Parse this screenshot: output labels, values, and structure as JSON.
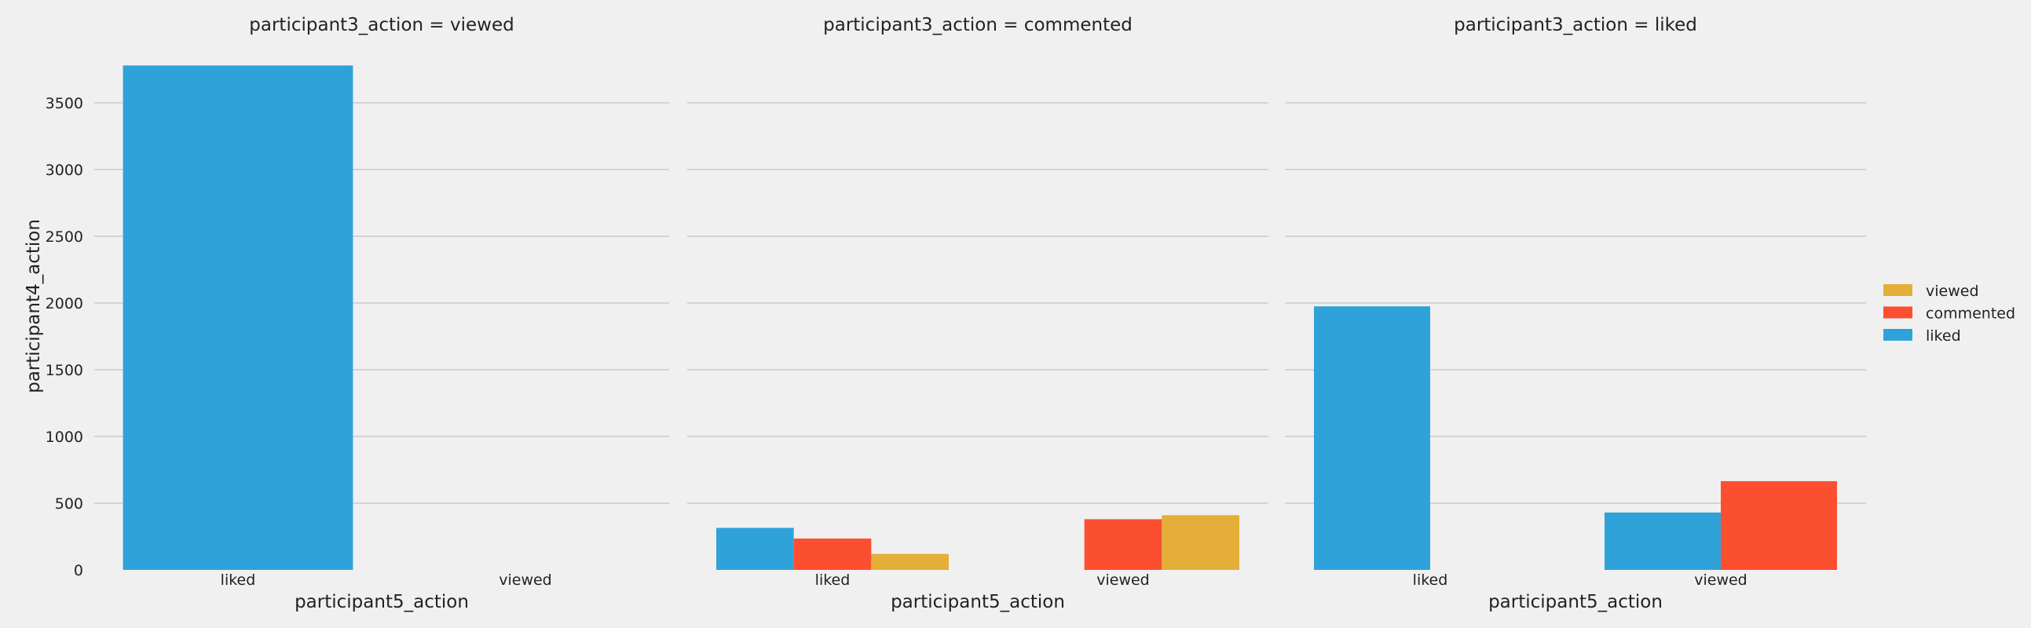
{
  "chart_data": {
    "type": "bar",
    "xlabel": "participant5_action",
    "ylabel": "participant4_action",
    "ylim": [
      0,
      3800
    ],
    "yticks": [
      0,
      500,
      1000,
      1500,
      2000,
      2500,
      3000,
      3500
    ],
    "grid": true,
    "legend_position": "right",
    "legend": [
      {
        "label": "viewed",
        "color": "#e5ae38"
      },
      {
        "label": "commented",
        "color": "#fc4f30"
      },
      {
        "label": "liked",
        "color": "#30a2da"
      }
    ],
    "series_colors": {
      "liked": "#30a2da",
      "commented": "#fc4f30",
      "viewed": "#e5ae38"
    },
    "panels": [
      {
        "title": "participant3_action = viewed",
        "categories": [
          "liked",
          "viewed"
        ],
        "hue_order": [
          "liked"
        ],
        "values": {
          "liked": {
            "liked": 3780
          }
        }
      },
      {
        "title": "participant3_action = commented",
        "categories": [
          "liked",
          "viewed"
        ],
        "hue_order": [
          "liked",
          "commented",
          "viewed"
        ],
        "values": {
          "liked": {
            "liked": 315,
            "commented": 235,
            "viewed": 120
          },
          "viewed": {
            "commented": 380,
            "viewed": 410
          }
        }
      },
      {
        "title": "participant3_action = liked",
        "categories": [
          "liked",
          "viewed"
        ],
        "hue_order": [
          "liked",
          "commented"
        ],
        "values": {
          "liked": {
            "liked": 1975
          },
          "viewed": {
            "liked": 430,
            "commented": 665
          }
        }
      }
    ]
  }
}
